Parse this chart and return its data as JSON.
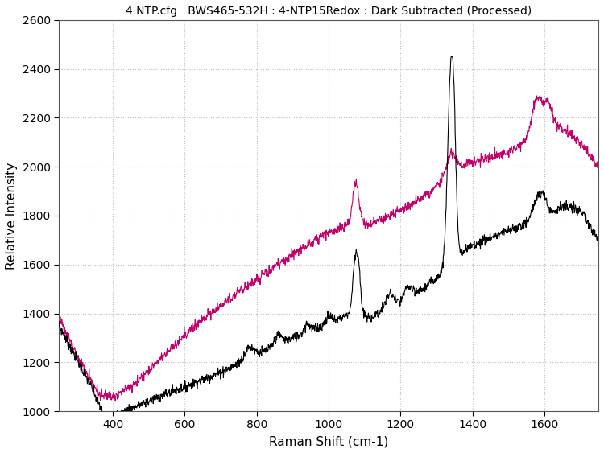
{
  "title": "4 NTP.cfg   BWS465-532H : 4-NTP15Redox : Dark Subtracted (Processed)",
  "xlabel": "Raman Shift (cm-1)",
  "ylabel": "Relative Intensity",
  "xlim": [
    250,
    1750
  ],
  "ylim": [
    1000,
    2600
  ],
  "xticks": [
    400,
    600,
    800,
    1000,
    1200,
    1400,
    1600
  ],
  "yticks": [
    1000,
    1200,
    1400,
    1600,
    1800,
    2000,
    2200,
    2400,
    2600
  ],
  "black_color": "#000000",
  "magenta_color": "#c0006a",
  "background_color": "#ffffff",
  "grid_color": "#bbbbbb",
  "title_fontsize": 10,
  "axis_label_fontsize": 11,
  "tick_fontsize": 10
}
